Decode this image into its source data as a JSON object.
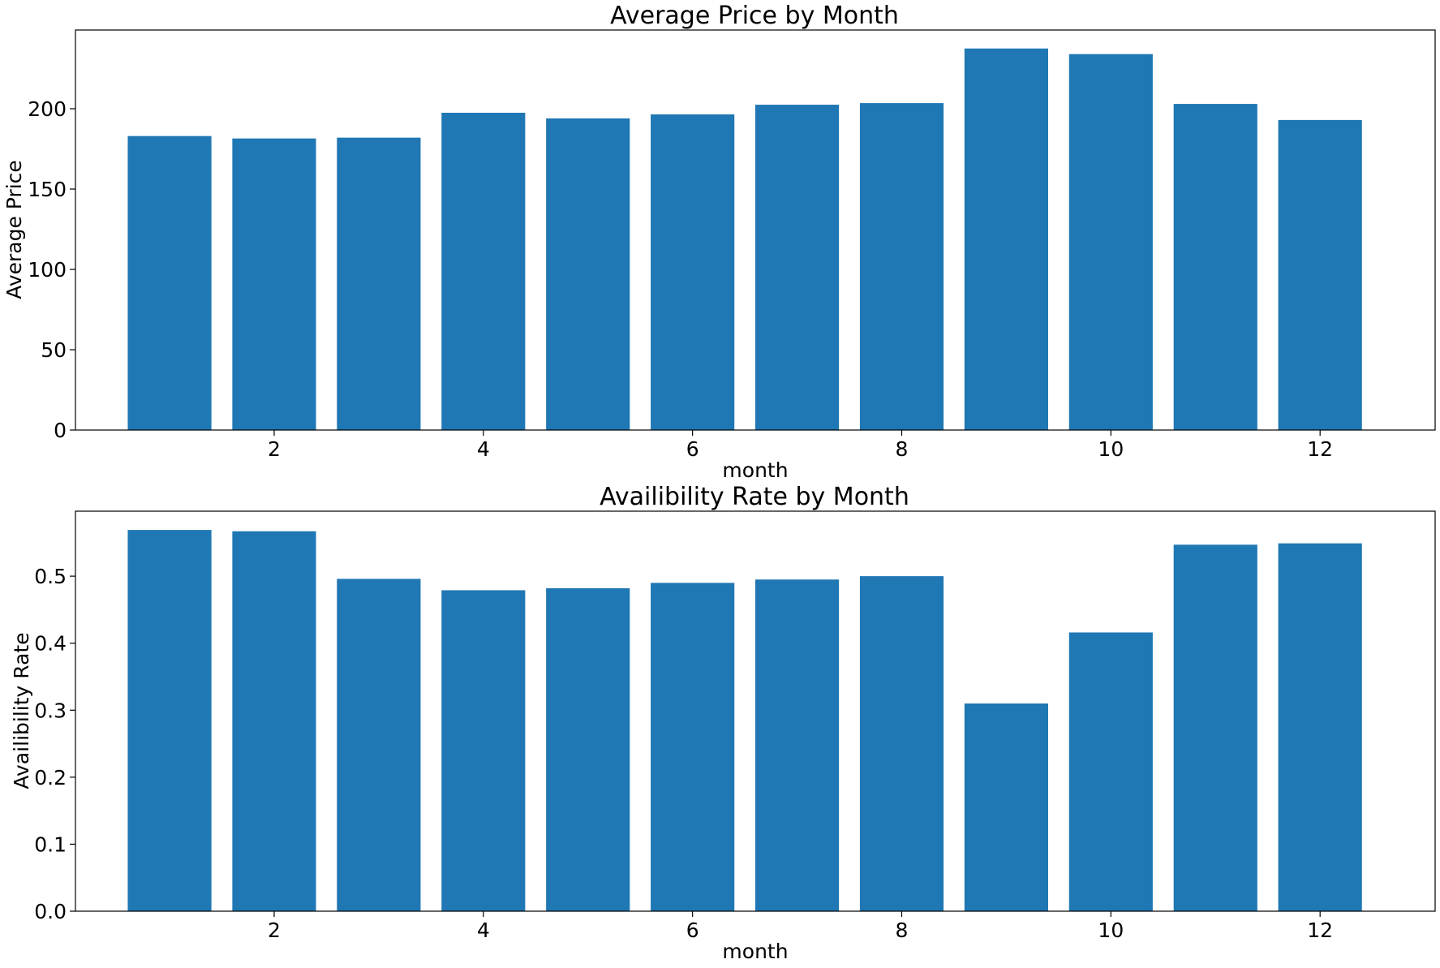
{
  "chart_data": [
    {
      "type": "bar",
      "title": "Average Price by Month",
      "xlabel": "month",
      "ylabel": "Average Price",
      "x": [
        1,
        2,
        3,
        4,
        5,
        6,
        7,
        8,
        9,
        10,
        11,
        12
      ],
      "values": [
        183,
        181.5,
        182,
        197.5,
        194,
        196.5,
        202.5,
        203.5,
        237.5,
        234,
        203,
        193
      ],
      "xticks": [
        2,
        4,
        6,
        8,
        10,
        12
      ],
      "yticks": [
        0,
        50,
        100,
        150,
        200
      ],
      "ylim": [
        0,
        249
      ],
      "xlim": [
        0.1,
        13.1
      ],
      "color": "#1f77b4",
      "grid": false,
      "legend": false
    },
    {
      "type": "bar",
      "title": "Availibility Rate by Month",
      "xlabel": "month",
      "ylabel": "Availibility Rate",
      "x": [
        1,
        2,
        3,
        4,
        5,
        6,
        7,
        8,
        9,
        10,
        11,
        12
      ],
      "values": [
        0.569,
        0.567,
        0.496,
        0.479,
        0.482,
        0.49,
        0.495,
        0.5,
        0.31,
        0.416,
        0.547,
        0.549
      ],
      "xticks": [
        2,
        4,
        6,
        8,
        10,
        12
      ],
      "yticks": [
        0.0,
        0.1,
        0.2,
        0.3,
        0.4,
        0.5
      ],
      "ylim": [
        0,
        0.597
      ],
      "xlim": [
        0.1,
        13.1
      ],
      "color": "#1f77b4",
      "grid": false,
      "legend": false
    }
  ]
}
